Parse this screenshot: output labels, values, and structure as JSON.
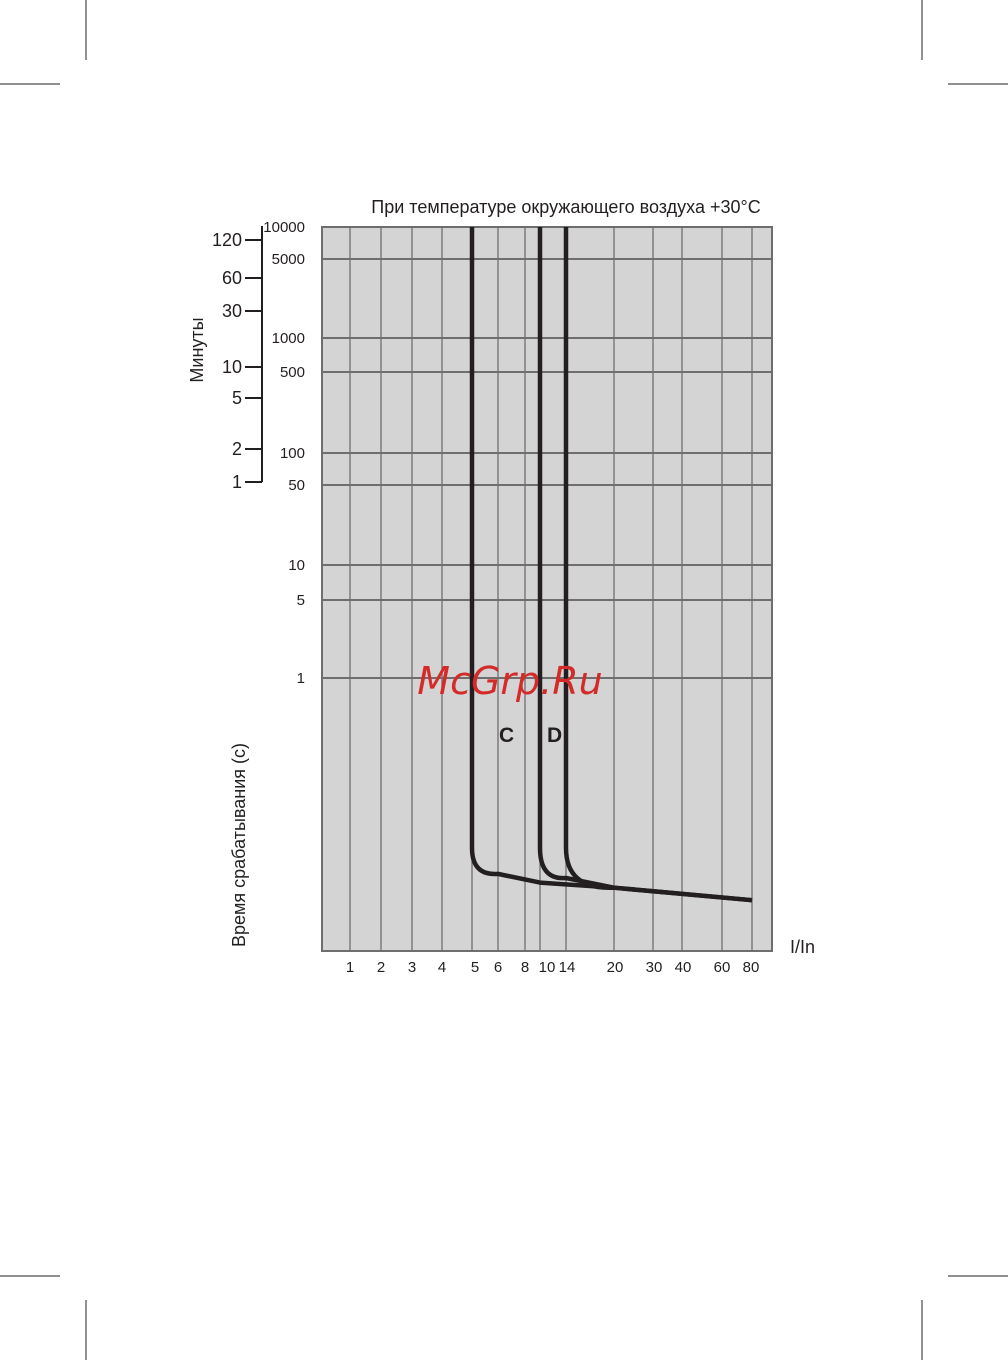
{
  "chart_data": {
    "type": "line",
    "title": "При температуре окружающего воздуха +30°C",
    "xlabel": "I/In",
    "ylabel": "Время срабатывания (с)",
    "secondary_ylabel": "Минуты",
    "x_ticks": [
      "1",
      "2",
      "3",
      "4",
      "5",
      "6",
      "8",
      "10",
      "14",
      "20",
      "30",
      "40",
      "60",
      "80"
    ],
    "y_ticks": [
      "10000",
      "5000",
      "1000",
      "500",
      "100",
      "50",
      "10",
      "5",
      "1"
    ],
    "minute_ticks": [
      "120",
      "60",
      "30",
      "10",
      "5",
      "2",
      "1"
    ],
    "grid": true,
    "background_color": "#d4d4d4",
    "line_color": "#231f20",
    "series": [
      {
        "name": "C",
        "points": [
          [
            5,
            10000
          ],
          [
            5,
            0.02
          ],
          [
            6,
            0.011
          ],
          [
            10,
            0.009
          ],
          [
            20,
            0.008
          ],
          [
            80,
            0.006
          ]
        ]
      },
      {
        "name": "D",
        "points": [
          [
            10,
            10000
          ],
          [
            10,
            0.02
          ],
          [
            14,
            0.01
          ],
          [
            20,
            0.008
          ],
          [
            80,
            0.006
          ]
        ]
      },
      {
        "name": "",
        "points": [
          [
            14,
            10000
          ],
          [
            14,
            0.02
          ],
          [
            20,
            0.008
          ]
        ]
      }
    ]
  },
  "watermark": "McGrp.Ru"
}
